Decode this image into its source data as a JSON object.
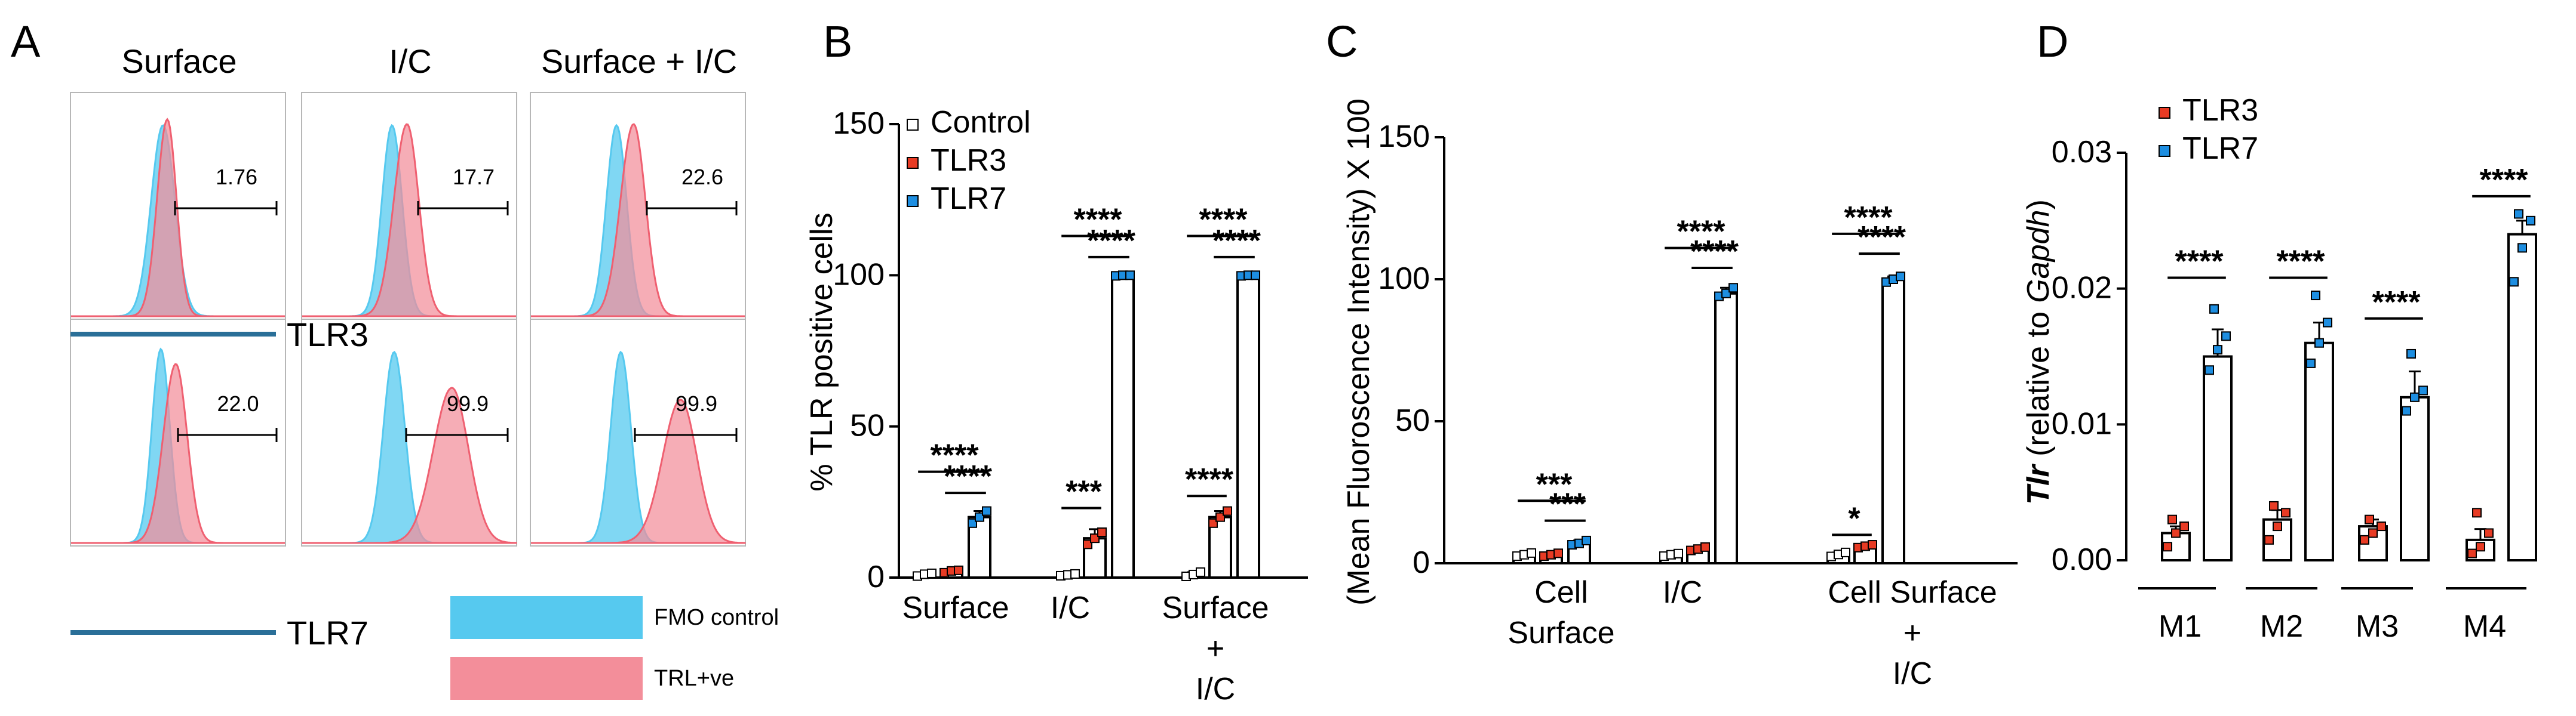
{
  "chart_data": [
    {
      "type": "histogram-grid",
      "panel": "A",
      "columns": [
        "Surface",
        "I/C",
        "Surface + I/C"
      ],
      "rows": [
        {
          "name": "TLR3",
          "values": [
            1.76,
            17.7,
            22.6
          ]
        },
        {
          "name": "TLR7",
          "values": [
            22.0,
            99.9,
            99.9
          ]
        }
      ],
      "legend": [
        {
          "name": "FMO control",
          "color": "#56c9ef"
        },
        {
          "name": "TRL+ve",
          "color": "#f38e9a"
        }
      ],
      "value_labels": [
        "1.76",
        "17.7",
        "22.6",
        "22.0",
        "99.9",
        "99.9"
      ]
    },
    {
      "type": "bar",
      "panel": "B",
      "title": "",
      "ylabel": "% TLR positive cells",
      "ylim": [
        0,
        150
      ],
      "yticks": [
        0,
        50,
        100,
        150
      ],
      "categories": [
        {
          "id": "surface",
          "lines": [
            "Surface"
          ]
        },
        {
          "id": "ic",
          "lines": [
            "I/C"
          ]
        },
        {
          "id": "surface_ic",
          "lines": [
            "Surface",
            "+",
            "I/C"
          ]
        }
      ],
      "series": [
        {
          "name": "Control",
          "color": "#ffffff",
          "values": [
            1,
            1,
            1
          ],
          "error": [
            0.5,
            0.5,
            0.8
          ],
          "points": [
            [
              0.5,
              1.1,
              1.4
            ],
            [
              0.6,
              0.9,
              1.2
            ],
            [
              0.4,
              1.0,
              1.8
            ]
          ]
        },
        {
          "name": "TLR3",
          "color": "#e83b24",
          "values": [
            2,
            13,
            20
          ],
          "error": [
            0.4,
            3,
            2
          ],
          "points": [
            [
              1.6,
              2.2,
              2.4
            ],
            [
              11,
              13,
              15
            ],
            [
              18,
              20,
              22
            ]
          ]
        },
        {
          "name": "TLR7",
          "color": "#1d8ee1",
          "values": [
            20,
            100,
            100
          ],
          "error": [
            2,
            0.3,
            0.3
          ],
          "points": [
            [
              18,
              20,
              22
            ],
            [
              99.8,
              100,
              100
            ],
            [
              99.8,
              100,
              100
            ]
          ]
        }
      ],
      "annotations": [
        {
          "category": 0,
          "from": 0,
          "to": 2,
          "text": "****",
          "value": 35
        },
        {
          "category": 0,
          "from": 1,
          "to": 2,
          "text": "****",
          "value": 28
        },
        {
          "category": 1,
          "from": 0,
          "to": 1,
          "text": "***",
          "value": 23
        },
        {
          "category": 1,
          "from": 0,
          "to": 2,
          "text": "****",
          "value": 113
        },
        {
          "category": 1,
          "from": 1,
          "to": 2,
          "text": "****",
          "value": 106
        },
        {
          "category": 2,
          "from": 0,
          "to": 1,
          "text": "****",
          "value": 27
        },
        {
          "category": 2,
          "from": 0,
          "to": 2,
          "text": "****",
          "value": 113
        },
        {
          "category": 2,
          "from": 1,
          "to": 2,
          "text": "****",
          "value": 106
        }
      ]
    },
    {
      "type": "bar",
      "panel": "C",
      "title": "",
      "ylabel": "(Mean Fluoroscence Intensity) X 100",
      "ylim": [
        0,
        150
      ],
      "yticks": [
        0,
        50,
        100,
        150
      ],
      "categories": [
        {
          "id": "cell_surface",
          "lines": [
            "Cell",
            "Surface"
          ]
        },
        {
          "id": "ic",
          "lines": [
            "I/C"
          ]
        },
        {
          "id": "cell_surface_ic",
          "lines": [
            "Cell Surface",
            "+",
            "I/C"
          ]
        }
      ],
      "series": [
        {
          "name": "Control",
          "color": "#ffffff",
          "values": [
            3,
            3,
            3
          ],
          "error": [
            0.5,
            0.5,
            0.8
          ],
          "points": [
            [
              2.5,
              3,
              3.6
            ],
            [
              2.5,
              3,
              3.4
            ],
            [
              2.4,
              3.1,
              3.8
            ]
          ]
        },
        {
          "name": "TLR3",
          "color": "#e83b24",
          "values": [
            3,
            5,
            6
          ],
          "error": [
            0.4,
            0.6,
            0.7
          ],
          "points": [
            [
              2.5,
              3,
              3.5
            ],
            [
              4.5,
              5,
              5.7
            ],
            [
              5.5,
              6,
              6.5
            ]
          ]
        },
        {
          "name": "TLR7",
          "color": "#1d8ee1",
          "values": [
            7,
            95,
            100
          ],
          "error": [
            1,
            2,
            1
          ],
          "points": [
            [
              6.5,
              7,
              8
            ],
            [
              94,
              95,
              97
            ],
            [
              99,
              100,
              101
            ]
          ]
        }
      ],
      "annotations": [
        {
          "category": 0,
          "from": 0,
          "to": 2,
          "text": "***",
          "value": 22
        },
        {
          "category": 0,
          "from": 1,
          "to": 2,
          "text": "***",
          "value": 15
        },
        {
          "category": 1,
          "from": 0,
          "to": 2,
          "text": "****",
          "value": 111
        },
        {
          "category": 1,
          "from": 1,
          "to": 2,
          "text": "****",
          "value": 104
        },
        {
          "category": 2,
          "from": 0,
          "to": 1,
          "text": "*",
          "value": 10
        },
        {
          "category": 2,
          "from": 0,
          "to": 2,
          "text": "****",
          "value": 116
        },
        {
          "category": 2,
          "from": 1,
          "to": 2,
          "text": "****",
          "value": 109
        }
      ]
    },
    {
      "type": "bar",
      "panel": "D",
      "title": "",
      "ylabel": "Tlr (relative to Gapdh)",
      "ylabel_parts": {
        "gene": "Tlr",
        "mid": "(relative to ",
        "ref": "Gapdh",
        "end": ")"
      },
      "ylim": [
        0,
        0.03
      ],
      "yticks": [
        0.0,
        0.01,
        0.02,
        0.03
      ],
      "ytick_labels": [
        "0.00",
        "0.01",
        "0.02",
        "0.03"
      ],
      "categories": [
        {
          "id": "m1",
          "lines": [
            "M1"
          ]
        },
        {
          "id": "m2",
          "lines": [
            "M2"
          ]
        },
        {
          "id": "m3",
          "lines": [
            "M3"
          ]
        },
        {
          "id": "m4",
          "lines": [
            "M4"
          ]
        }
      ],
      "series": [
        {
          "name": "TLR3",
          "color": "#e83b24",
          "values": [
            0.002,
            0.003,
            0.0025,
            0.0015
          ],
          "error": [
            0.0005,
            0.0007,
            0.0005,
            0.0008
          ],
          "points": [
            [
              0.001,
              0.002,
              0.0025,
              0.003
            ],
            [
              0.0015,
              0.0025,
              0.0035,
              0.004
            ],
            [
              0.0015,
              0.002,
              0.0025,
              0.003
            ],
            [
              0.0005,
              0.001,
              0.002,
              0.0035
            ]
          ]
        },
        {
          "name": "TLR7",
          "color": "#1d8ee1",
          "values": [
            0.015,
            0.016,
            0.012,
            0.024
          ],
          "error": [
            0.002,
            0.0015,
            0.0019,
            0.001
          ],
          "points": [
            [
              0.014,
              0.0155,
              0.0165,
              0.0185
            ],
            [
              0.0145,
              0.016,
              0.0175,
              0.0195
            ],
            [
              0.011,
              0.012,
              0.0125,
              0.0152
            ],
            [
              0.0205,
              0.023,
              0.025,
              0.0255
            ]
          ]
        }
      ],
      "annotations": [
        {
          "category": 0,
          "from": 0,
          "to": 1,
          "text": "****",
          "value": 0.0208
        },
        {
          "category": 1,
          "from": 0,
          "to": 1,
          "text": "****",
          "value": 0.0208
        },
        {
          "category": 2,
          "from": 0,
          "to": 1,
          "text": "****",
          "value": 0.0178
        },
        {
          "category": 3,
          "from": 0,
          "to": 1,
          "text": "****",
          "value": 0.0268
        }
      ]
    }
  ],
  "panel_labels": [
    "A",
    "B",
    "C",
    "D"
  ],
  "legend_names": {
    "control": "Control",
    "tlr3": "TLR3",
    "tlr7": "TLR7"
  }
}
